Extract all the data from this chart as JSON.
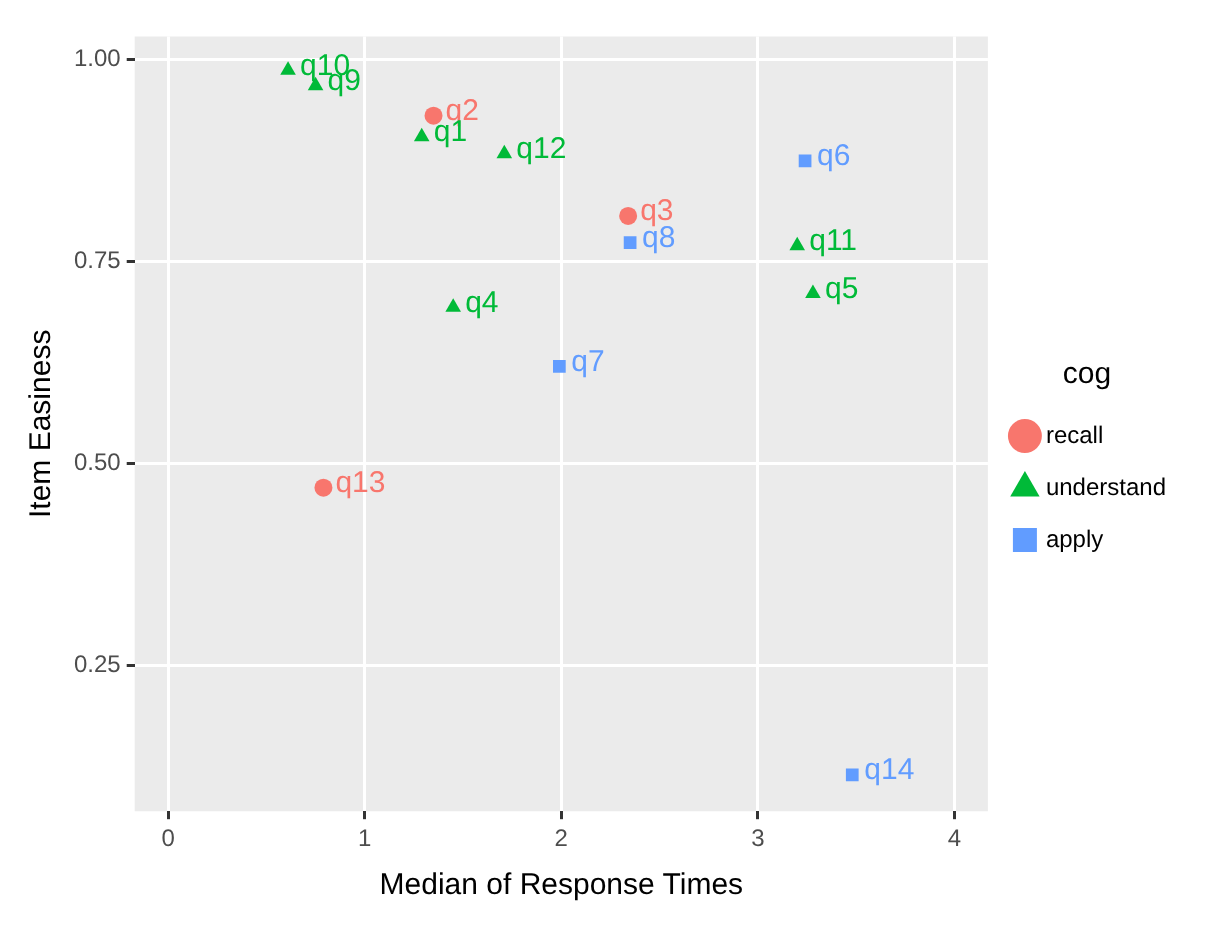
{
  "chart_data": {
    "type": "scatter",
    "xlabel": "Median of Response Times",
    "ylabel": "Item Easiness",
    "legend_title": "cog",
    "legend": "right",
    "grid": true,
    "xlim": [
      -0.17,
      4.17
    ],
    "xticks": [
      0,
      1,
      2,
      3,
      4
    ],
    "ylim": [
      0.07,
      1.028
    ],
    "yticks": [
      {
        "value": 0.25,
        "label": "0.25"
      },
      {
        "value": 0.5,
        "label": "0.50"
      },
      {
        "value": 0.75,
        "label": "0.75"
      },
      {
        "value": 1,
        "label": "1.00"
      }
    ],
    "series": [
      {
        "name": "recall",
        "color": "#f8766d",
        "marker": "circle",
        "x": [
          1.35,
          2.34,
          0.79
        ],
        "values": [
          0.93,
          0.806,
          0.47
        ]
      },
      {
        "name": "understand",
        "color": "#00ba38",
        "marker": "triangle",
        "x": [
          0.61,
          0.75,
          1.29,
          1.71,
          3.2,
          3.28,
          1.45
        ],
        "values": [
          0.986,
          0.967,
          0.904,
          0.883,
          0.769,
          0.71,
          0.693
        ]
      },
      {
        "name": "apply",
        "color": "#619cff",
        "marker": "square",
        "x": [
          3.24,
          2.35,
          1.99,
          3.48
        ],
        "values": [
          0.874,
          0.773,
          0.62,
          0.115
        ]
      }
    ],
    "annotations": [
      {
        "text": "q2",
        "x": 1.35,
        "y": 0.93
      },
      {
        "text": "q3",
        "x": 2.34,
        "y": 0.806
      },
      {
        "text": "q13",
        "x": 0.79,
        "y": 0.47
      },
      {
        "text": "q10",
        "x": 0.61,
        "y": 0.986
      },
      {
        "text": "q9",
        "x": 0.75,
        "y": 0.967
      },
      {
        "text": "q1",
        "x": 1.29,
        "y": 0.904
      },
      {
        "text": "q12",
        "x": 1.71,
        "y": 0.883
      },
      {
        "text": "q11",
        "x": 3.2,
        "y": 0.769
      },
      {
        "text": "q5",
        "x": 3.28,
        "y": 0.71
      },
      {
        "text": "q4",
        "x": 1.45,
        "y": 0.693
      },
      {
        "text": "q6",
        "x": 3.24,
        "y": 0.874
      },
      {
        "text": "q8",
        "x": 2.35,
        "y": 0.773
      },
      {
        "text": "q7",
        "x": 1.99,
        "y": 0.62
      },
      {
        "text": "q14",
        "x": 3.48,
        "y": 0.115
      }
    ]
  }
}
